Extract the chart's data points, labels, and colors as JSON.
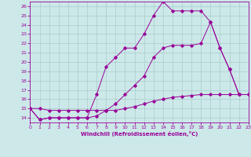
{
  "xlabel": "Windchill (Refroidissement éolien,°C)",
  "xlim": [
    0,
    23
  ],
  "ylim": [
    13.5,
    26.5
  ],
  "xticks": [
    0,
    1,
    2,
    3,
    4,
    5,
    6,
    7,
    8,
    9,
    10,
    11,
    12,
    13,
    14,
    15,
    16,
    17,
    18,
    19,
    20,
    21,
    22,
    23
  ],
  "yticks": [
    14,
    15,
    16,
    17,
    18,
    19,
    20,
    21,
    22,
    23,
    24,
    25,
    26
  ],
  "bg_color": "#cce8e8",
  "grid_color": "#aacccc",
  "line_color": "#990099",
  "lines": [
    {
      "x": [
        0,
        1,
        2,
        3,
        4,
        5,
        6,
        7,
        8,
        9,
        10,
        11,
        12,
        13,
        14,
        15,
        16,
        17,
        18,
        19,
        20,
        21,
        22,
        23
      ],
      "y": [
        15.0,
        15.0,
        14.8,
        14.8,
        14.8,
        14.8,
        14.8,
        14.8,
        14.8,
        14.8,
        15.0,
        15.2,
        15.5,
        15.8,
        16.0,
        16.2,
        16.3,
        16.4,
        16.5,
        16.5,
        16.5,
        16.5,
        16.5,
        16.5
      ]
    },
    {
      "x": [
        0,
        1,
        2,
        3,
        4,
        5,
        6,
        7,
        8,
        9,
        10,
        11,
        12,
        13,
        14,
        15,
        16,
        17,
        18,
        19,
        20,
        21,
        22
      ],
      "y": [
        15.0,
        13.8,
        14.0,
        14.0,
        14.0,
        14.0,
        14.0,
        16.5,
        19.5,
        20.5,
        21.5,
        21.5,
        23.0,
        25.0,
        26.5,
        25.5,
        25.5,
        25.5,
        25.5,
        24.3,
        21.5,
        19.2,
        16.5
      ]
    },
    {
      "x": [
        0,
        1,
        2,
        3,
        4,
        5,
        6,
        7,
        8,
        9,
        10,
        11,
        12,
        13,
        14,
        15,
        16,
        17,
        18,
        19,
        20,
        21,
        22,
        23
      ],
      "y": [
        15.0,
        13.8,
        14.0,
        14.0,
        14.0,
        14.0,
        14.0,
        14.2,
        14.8,
        15.5,
        16.5,
        17.5,
        18.5,
        20.5,
        21.5,
        21.8,
        21.8,
        21.8,
        22.0,
        24.3,
        21.5,
        19.2,
        16.5,
        16.5
      ]
    }
  ]
}
